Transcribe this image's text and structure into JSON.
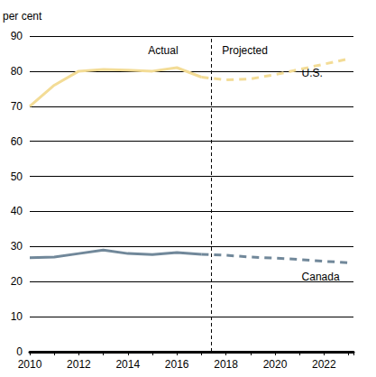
{
  "chart_data": {
    "type": "line",
    "y_label": "per cent",
    "x": [
      2010,
      2011,
      2012,
      2013,
      2014,
      2015,
      2016,
      2017,
      2018,
      2019,
      2020,
      2021,
      2022,
      2023
    ],
    "series": [
      {
        "name": "U.S.",
        "color": "#f3dc96",
        "values": [
          70,
          76,
          80,
          80.5,
          80.3,
          80,
          81,
          78.3,
          77.5,
          77.8,
          79,
          80.5,
          82,
          83.5
        ]
      },
      {
        "name": "Canada",
        "color": "#71889a",
        "values": [
          26.8,
          27,
          28,
          29,
          28,
          27.7,
          28.3,
          27.8,
          27.5,
          27,
          26.7,
          26.3,
          25.8,
          25.4
        ]
      }
    ],
    "divider": {
      "x": 2017.4,
      "labels": [
        "Actual",
        "Projected"
      ]
    },
    "xlim": [
      2010,
      2023.2
    ],
    "xticks": [
      2010,
      2012,
      2014,
      2016,
      2018,
      2020,
      2022
    ],
    "ylim": [
      0,
      90
    ],
    "yticks": [
      0,
      10,
      20,
      30,
      40,
      50,
      60,
      70,
      80,
      90
    ],
    "grid": true
  }
}
